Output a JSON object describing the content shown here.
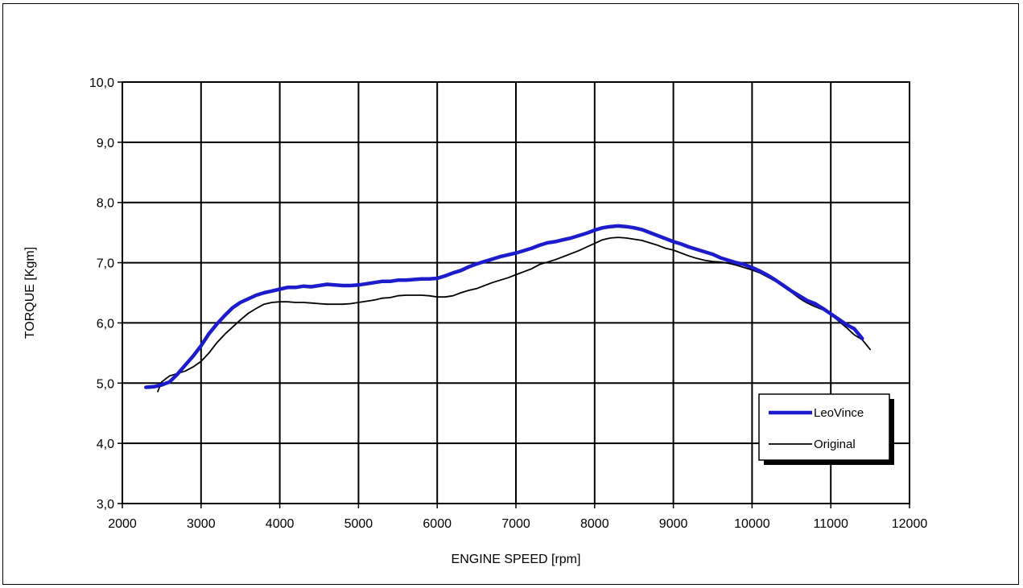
{
  "chart_data": {
    "type": "line",
    "title": "",
    "xlabel": "ENGINE SPEED [rpm]",
    "ylabel": "TORQUE [Kgm]",
    "xlim": [
      2000,
      12000
    ],
    "ylim": [
      3.0,
      10.0
    ],
    "x_ticks": [
      "2000",
      "3000",
      "4000",
      "5000",
      "6000",
      "7000",
      "8000",
      "9000",
      "10000",
      "11000",
      "12000"
    ],
    "y_ticks": [
      "3,0",
      "4,0",
      "5,0",
      "6,0",
      "7,0",
      "8,0",
      "9,0",
      "10,0"
    ],
    "grid": true,
    "legend_position": "bottom-right",
    "series": [
      {
        "name": "LeoVince",
        "color": "#1c1ccc",
        "points": [
          [
            2300,
            4.93
          ],
          [
            2400,
            4.94
          ],
          [
            2500,
            4.97
          ],
          [
            2600,
            5.02
          ],
          [
            2700,
            5.15
          ],
          [
            2800,
            5.3
          ],
          [
            2900,
            5.45
          ],
          [
            3000,
            5.62
          ],
          [
            3100,
            5.82
          ],
          [
            3200,
            5.98
          ],
          [
            3300,
            6.12
          ],
          [
            3400,
            6.25
          ],
          [
            3500,
            6.34
          ],
          [
            3600,
            6.4
          ],
          [
            3700,
            6.46
          ],
          [
            3800,
            6.5
          ],
          [
            3900,
            6.53
          ],
          [
            4000,
            6.56
          ],
          [
            4100,
            6.59
          ],
          [
            4200,
            6.59
          ],
          [
            4300,
            6.61
          ],
          [
            4400,
            6.6
          ],
          [
            4500,
            6.62
          ],
          [
            4600,
            6.64
          ],
          [
            4700,
            6.63
          ],
          [
            4800,
            6.62
          ],
          [
            4900,
            6.62
          ],
          [
            5000,
            6.63
          ],
          [
            5100,
            6.65
          ],
          [
            5200,
            6.67
          ],
          [
            5300,
            6.69
          ],
          [
            5400,
            6.69
          ],
          [
            5500,
            6.71
          ],
          [
            5600,
            6.71
          ],
          [
            5700,
            6.72
          ],
          [
            5800,
            6.73
          ],
          [
            5900,
            6.73
          ],
          [
            6000,
            6.74
          ],
          [
            6100,
            6.78
          ],
          [
            6200,
            6.83
          ],
          [
            6300,
            6.87
          ],
          [
            6400,
            6.93
          ],
          [
            6500,
            6.98
          ],
          [
            6600,
            7.02
          ],
          [
            6700,
            7.06
          ],
          [
            6800,
            7.1
          ],
          [
            6900,
            7.13
          ],
          [
            7000,
            7.16
          ],
          [
            7100,
            7.2
          ],
          [
            7200,
            7.24
          ],
          [
            7300,
            7.29
          ],
          [
            7400,
            7.33
          ],
          [
            7500,
            7.35
          ],
          [
            7600,
            7.38
          ],
          [
            7700,
            7.41
          ],
          [
            7800,
            7.45
          ],
          [
            7900,
            7.49
          ],
          [
            8000,
            7.54
          ],
          [
            8100,
            7.58
          ],
          [
            8200,
            7.6
          ],
          [
            8300,
            7.61
          ],
          [
            8400,
            7.6
          ],
          [
            8500,
            7.58
          ],
          [
            8600,
            7.55
          ],
          [
            8700,
            7.5
          ],
          [
            8800,
            7.45
          ],
          [
            8900,
            7.4
          ],
          [
            9000,
            7.35
          ],
          [
            9100,
            7.31
          ],
          [
            9200,
            7.26
          ],
          [
            9300,
            7.22
          ],
          [
            9400,
            7.18
          ],
          [
            9500,
            7.14
          ],
          [
            9600,
            7.08
          ],
          [
            9700,
            7.04
          ],
          [
            9800,
            7.0
          ],
          [
            9900,
            6.97
          ],
          [
            10000,
            6.92
          ],
          [
            10100,
            6.86
          ],
          [
            10200,
            6.79
          ],
          [
            10300,
            6.71
          ],
          [
            10400,
            6.62
          ],
          [
            10500,
            6.53
          ],
          [
            10600,
            6.45
          ],
          [
            10700,
            6.37
          ],
          [
            10800,
            6.32
          ],
          [
            10900,
            6.24
          ],
          [
            11000,
            6.15
          ],
          [
            11100,
            6.06
          ],
          [
            11200,
            5.97
          ],
          [
            11300,
            5.9
          ],
          [
            11400,
            5.74
          ]
        ]
      },
      {
        "name": "Original",
        "color": "#000000",
        "points": [
          [
            2450,
            4.86
          ],
          [
            2500,
            5.02
          ],
          [
            2600,
            5.12
          ],
          [
            2700,
            5.16
          ],
          [
            2800,
            5.2
          ],
          [
            2900,
            5.27
          ],
          [
            3000,
            5.36
          ],
          [
            3100,
            5.5
          ],
          [
            3200,
            5.67
          ],
          [
            3300,
            5.81
          ],
          [
            3400,
            5.93
          ],
          [
            3500,
            6.05
          ],
          [
            3600,
            6.16
          ],
          [
            3700,
            6.24
          ],
          [
            3800,
            6.31
          ],
          [
            3900,
            6.34
          ],
          [
            4000,
            6.35
          ],
          [
            4100,
            6.35
          ],
          [
            4200,
            6.34
          ],
          [
            4300,
            6.34
          ],
          [
            4400,
            6.33
          ],
          [
            4500,
            6.32
          ],
          [
            4600,
            6.31
          ],
          [
            4700,
            6.31
          ],
          [
            4800,
            6.31
          ],
          [
            4900,
            6.32
          ],
          [
            5000,
            6.34
          ],
          [
            5100,
            6.36
          ],
          [
            5200,
            6.38
          ],
          [
            5300,
            6.41
          ],
          [
            5400,
            6.42
          ],
          [
            5500,
            6.45
          ],
          [
            5600,
            6.46
          ],
          [
            5700,
            6.46
          ],
          [
            5800,
            6.46
          ],
          [
            5900,
            6.45
          ],
          [
            6000,
            6.43
          ],
          [
            6100,
            6.43
          ],
          [
            6200,
            6.45
          ],
          [
            6300,
            6.5
          ],
          [
            6400,
            6.54
          ],
          [
            6500,
            6.57
          ],
          [
            6600,
            6.62
          ],
          [
            6700,
            6.67
          ],
          [
            6800,
            6.71
          ],
          [
            6900,
            6.75
          ],
          [
            7000,
            6.8
          ],
          [
            7100,
            6.85
          ],
          [
            7200,
            6.9
          ],
          [
            7300,
            6.97
          ],
          [
            7400,
            7.01
          ],
          [
            7500,
            7.05
          ],
          [
            7600,
            7.1
          ],
          [
            7700,
            7.15
          ],
          [
            7800,
            7.2
          ],
          [
            7900,
            7.26
          ],
          [
            8000,
            7.32
          ],
          [
            8100,
            7.38
          ],
          [
            8200,
            7.41
          ],
          [
            8300,
            7.42
          ],
          [
            8400,
            7.41
          ],
          [
            8500,
            7.39
          ],
          [
            8600,
            7.37
          ],
          [
            8700,
            7.33
          ],
          [
            8800,
            7.29
          ],
          [
            8900,
            7.24
          ],
          [
            9000,
            7.21
          ],
          [
            9100,
            7.16
          ],
          [
            9200,
            7.11
          ],
          [
            9300,
            7.07
          ],
          [
            9400,
            7.04
          ],
          [
            9500,
            7.02
          ],
          [
            9600,
            7.01
          ],
          [
            9700,
            6.99
          ],
          [
            9800,
            6.96
          ],
          [
            9900,
            6.92
          ],
          [
            10000,
            6.88
          ],
          [
            10100,
            6.83
          ],
          [
            10200,
            6.76
          ],
          [
            10300,
            6.69
          ],
          [
            10400,
            6.6
          ],
          [
            10500,
            6.51
          ],
          [
            10600,
            6.41
          ],
          [
            10700,
            6.33
          ],
          [
            10800,
            6.27
          ],
          [
            10900,
            6.22
          ],
          [
            11000,
            6.14
          ],
          [
            11100,
            6.03
          ],
          [
            11200,
            5.92
          ],
          [
            11300,
            5.8
          ],
          [
            11400,
            5.72
          ],
          [
            11500,
            5.56
          ]
        ]
      }
    ]
  }
}
